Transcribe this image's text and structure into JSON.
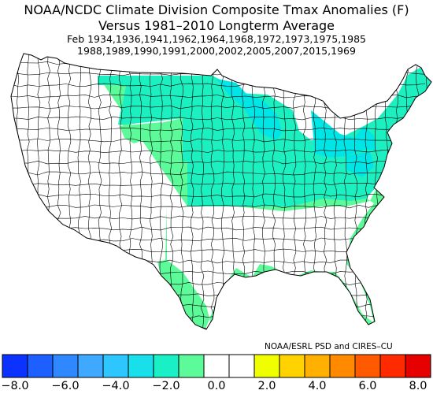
{
  "title": {
    "line1": "NOAA/NCDC Climate Division Composite Tmax Anomalies (F)",
    "line2": "Versus 1981–2010 Longterm Average",
    "line3": "Feb   1934,1936,1941,1962,1964,1968,1972,1973,1975,1985",
    "line4": "1988,1989,1990,1991,2000,2002,2005,2007,2015,1969"
  },
  "credit": "NOAA/ESRL PSD and CIRES–CU",
  "colors": {
    "no_data": "#ffffff",
    "outline": "#000000",
    "band_0_to_minus2": "#ffffff",
    "band_minus2_to_minus3": "#5dfa9a",
    "band_minus3_to_minus4": "#1cf0c0",
    "band_minus4_to_minus5": "#00e6e6"
  },
  "legend": {
    "colors": [
      "#0c32ff",
      "#1e5fff",
      "#2f88ff",
      "#3fa8ff",
      "#2ec6ff",
      "#19dfea",
      "#19f0c5",
      "#5dfa9a",
      "#ffffff",
      "#ffffff",
      "#f0ff00",
      "#ffd200",
      "#ffb000",
      "#ff8a00",
      "#ff5a00",
      "#ff2a00",
      "#e60000"
    ],
    "ticks": [
      "−8.0",
      "−6.0",
      "−4.0",
      "−2.0",
      "0.0",
      "2.0",
      "4.0",
      "6.0",
      "8.0"
    ]
  }
}
